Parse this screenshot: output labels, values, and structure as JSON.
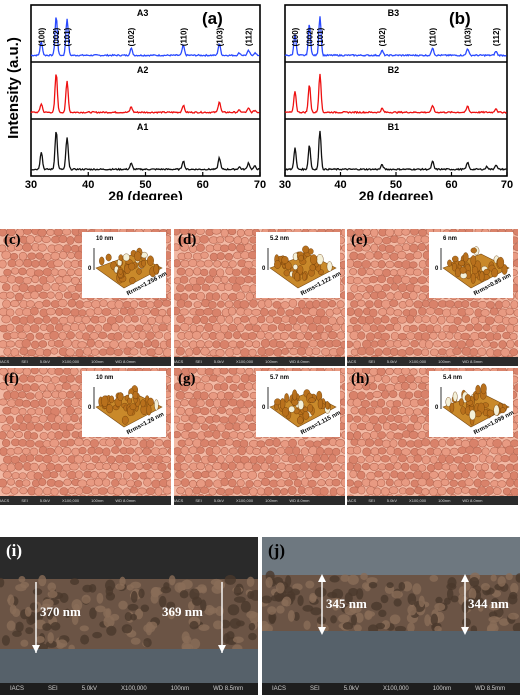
{
  "chart_data": [
    {
      "panel": "(a)",
      "type": "line",
      "ylabel": "Intensity (a.u.)",
      "xlabel": "2θ (degree)",
      "xlim": [
        30,
        70
      ],
      "xticks": [
        30,
        40,
        50,
        60,
        70
      ],
      "peak_labels": [
        {
          "hkl": "(100)",
          "x": 31.8
        },
        {
          "hkl": "(002)",
          "x": 34.4
        },
        {
          "hkl": "(101)",
          "x": 36.3
        },
        {
          "hkl": "(102)",
          "x": 47.5
        },
        {
          "hkl": "(110)",
          "x": 56.6
        },
        {
          "hkl": "(103)",
          "x": 62.9
        },
        {
          "hkl": "(112)",
          "x": 68.0
        }
      ],
      "series": [
        {
          "name": "A3",
          "color": "#2b4bff",
          "peaks": [
            [
              31.8,
              0.35
            ],
            [
              34.4,
              1.0
            ],
            [
              36.3,
              0.95
            ],
            [
              47.5,
              0.18
            ],
            [
              56.6,
              0.25
            ],
            [
              62.9,
              0.3
            ],
            [
              66.4,
              0.06
            ],
            [
              68.0,
              0.12
            ],
            [
              69.1,
              0.06
            ]
          ]
        },
        {
          "name": "A2",
          "color": "#ee1111",
          "peaks": [
            [
              31.8,
              0.22
            ],
            [
              34.4,
              1.0
            ],
            [
              36.3,
              0.8
            ],
            [
              47.5,
              0.14
            ],
            [
              56.6,
              0.18
            ],
            [
              62.9,
              0.28
            ],
            [
              66.4,
              0.05
            ],
            [
              68.0,
              0.1
            ],
            [
              69.1,
              0.05
            ]
          ]
        },
        {
          "name": "A1",
          "color": "#111111",
          "peaks": [
            [
              31.8,
              0.45
            ],
            [
              34.4,
              1.0
            ],
            [
              36.3,
              0.82
            ],
            [
              47.5,
              0.15
            ],
            [
              56.6,
              0.22
            ],
            [
              62.9,
              0.3
            ],
            [
              66.4,
              0.06
            ],
            [
              68.0,
              0.17
            ],
            [
              69.1,
              0.08
            ]
          ]
        }
      ]
    },
    {
      "panel": "(b)",
      "type": "line",
      "xlabel": "2θ (degree)",
      "xlim": [
        30,
        70
      ],
      "xticks": [
        30,
        40,
        50,
        60,
        70
      ],
      "peak_labels": [
        {
          "hkl": "(100)",
          "x": 31.8
        },
        {
          "hkl": "(002)",
          "x": 34.4
        },
        {
          "hkl": "(101)",
          "x": 36.3
        },
        {
          "hkl": "(102)",
          "x": 47.5
        },
        {
          "hkl": "(110)",
          "x": 56.6
        },
        {
          "hkl": "(103)",
          "x": 62.9
        },
        {
          "hkl": "(112)",
          "x": 68.0
        }
      ],
      "series": [
        {
          "name": "B3",
          "color": "#2b4bff",
          "peaks": [
            [
              31.8,
              0.55
            ],
            [
              34.4,
              0.8
            ],
            [
              36.3,
              1.0
            ],
            [
              47.5,
              0.12
            ],
            [
              56.6,
              0.2
            ],
            [
              62.9,
              0.18
            ],
            [
              68.0,
              0.1
            ]
          ]
        },
        {
          "name": "B2",
          "color": "#ee1111",
          "peaks": [
            [
              31.8,
              0.55
            ],
            [
              34.4,
              0.72
            ],
            [
              36.3,
              1.0
            ],
            [
              47.5,
              0.1
            ],
            [
              56.6,
              0.18
            ],
            [
              62.9,
              0.16
            ],
            [
              68.0,
              0.1
            ]
          ]
        },
        {
          "name": "B1",
          "color": "#111111",
          "peaks": [
            [
              31.8,
              0.55
            ],
            [
              34.4,
              0.62
            ],
            [
              36.3,
              1.0
            ],
            [
              47.5,
              0.12
            ],
            [
              56.6,
              0.2
            ],
            [
              62.9,
              0.18
            ],
            [
              66.4,
              0.07
            ],
            [
              68.0,
              0.12
            ]
          ]
        }
      ]
    }
  ],
  "sem_panels": [
    {
      "id": "(c)",
      "height_label": "10 nm",
      "rms": "Rrms=1.256 nm",
      "footer": [
        "IACS",
        "SEI",
        "5.0kV",
        "X100,000",
        "100nm",
        "WD 8.0mm"
      ]
    },
    {
      "id": "(d)",
      "height_label": "5.2 nm",
      "rms": "Rrms=1.122 nm",
      "footer": [
        "IACS",
        "SEI",
        "5.0kV",
        "X100,000",
        "100nm",
        "WD 8.0mm"
      ]
    },
    {
      "id": "(e)",
      "height_label": "6 nm",
      "rms": "Rrms=0.85 nm",
      "footer": [
        "IACS",
        "SEI",
        "5.0kV",
        "X100,000",
        "100nm",
        "WD 8.5mm"
      ]
    },
    {
      "id": "(f)",
      "height_label": "10 nm",
      "rms": "Rrms=1.26 nm",
      "footer": [
        "IACS",
        "SEI",
        "5.0kV",
        "X100,000",
        "100nm",
        "WD 8.0mm"
      ]
    },
    {
      "id": "(g)",
      "height_label": "5.7 nm",
      "rms": "Rrms=1.115 nm",
      "footer": [
        "IACS",
        "SEI",
        "5.0kV",
        "X100,000",
        "100nm",
        "WD 8.0mm"
      ]
    },
    {
      "id": "(h)",
      "height_label": "5.4 nm",
      "rms": "Rrms=1.099 nm",
      "footer": [
        "IACS",
        "SEI",
        "5.0kV",
        "X100,000",
        "100nm",
        "WD 8.0mm"
      ]
    }
  ],
  "cross_sections": [
    {
      "id": "(i)",
      "thickness_left": "370 nm",
      "thickness_right": "369 nm",
      "footer": [
        "IACS",
        "SEI",
        "5.0kV",
        "X100,000",
        "100nm",
        "WD 8.5mm"
      ]
    },
    {
      "id": "(j)",
      "thickness_left": "345 nm",
      "thickness_right": "344 nm",
      "footer": [
        "IACS",
        "SEI",
        "5.0kV",
        "X100,000",
        "100nm",
        "WD 8.5mm"
      ]
    }
  ],
  "colors": {
    "sem_grain": "#d9826a",
    "sem_bg": "#f2b9a4",
    "xs_film": "#6b5445",
    "xs_substrate": "#56616a"
  }
}
